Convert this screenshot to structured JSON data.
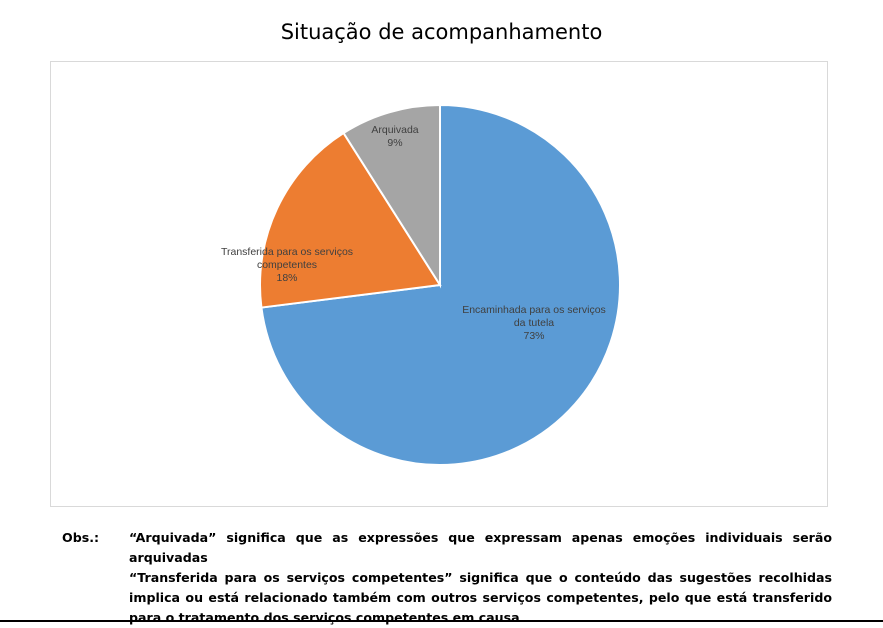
{
  "chart_data": {
    "type": "pie",
    "title": "Situação de acompanhamento",
    "slices": [
      {
        "label_lines": [
          "Encaminhada para os serviços",
          "da tutela"
        ],
        "percent_label": "73%",
        "value": 73,
        "color": "#5b9bd5"
      },
      {
        "label_lines": [
          "Transferida para os serviços",
          "competentes"
        ],
        "percent_label": "18%",
        "value": 18,
        "color": "#ed7d31"
      },
      {
        "label_lines": [
          "Arquivada"
        ],
        "percent_label": "9%",
        "value": 9,
        "color": "#a5a5a5"
      }
    ]
  },
  "note": {
    "prefix": "Obs.:",
    "line1": "“Arquivada” significa que as expressões que expressam apenas emoções individuais serão arquivadas",
    "line2": "“Transferida para os serviços competentes” significa que o conteúdo das sugestões recolhidas implica ou está relacionado também com outros serviços competentes, pelo que está transferido para o tratamento dos serviços competentes em causa"
  }
}
